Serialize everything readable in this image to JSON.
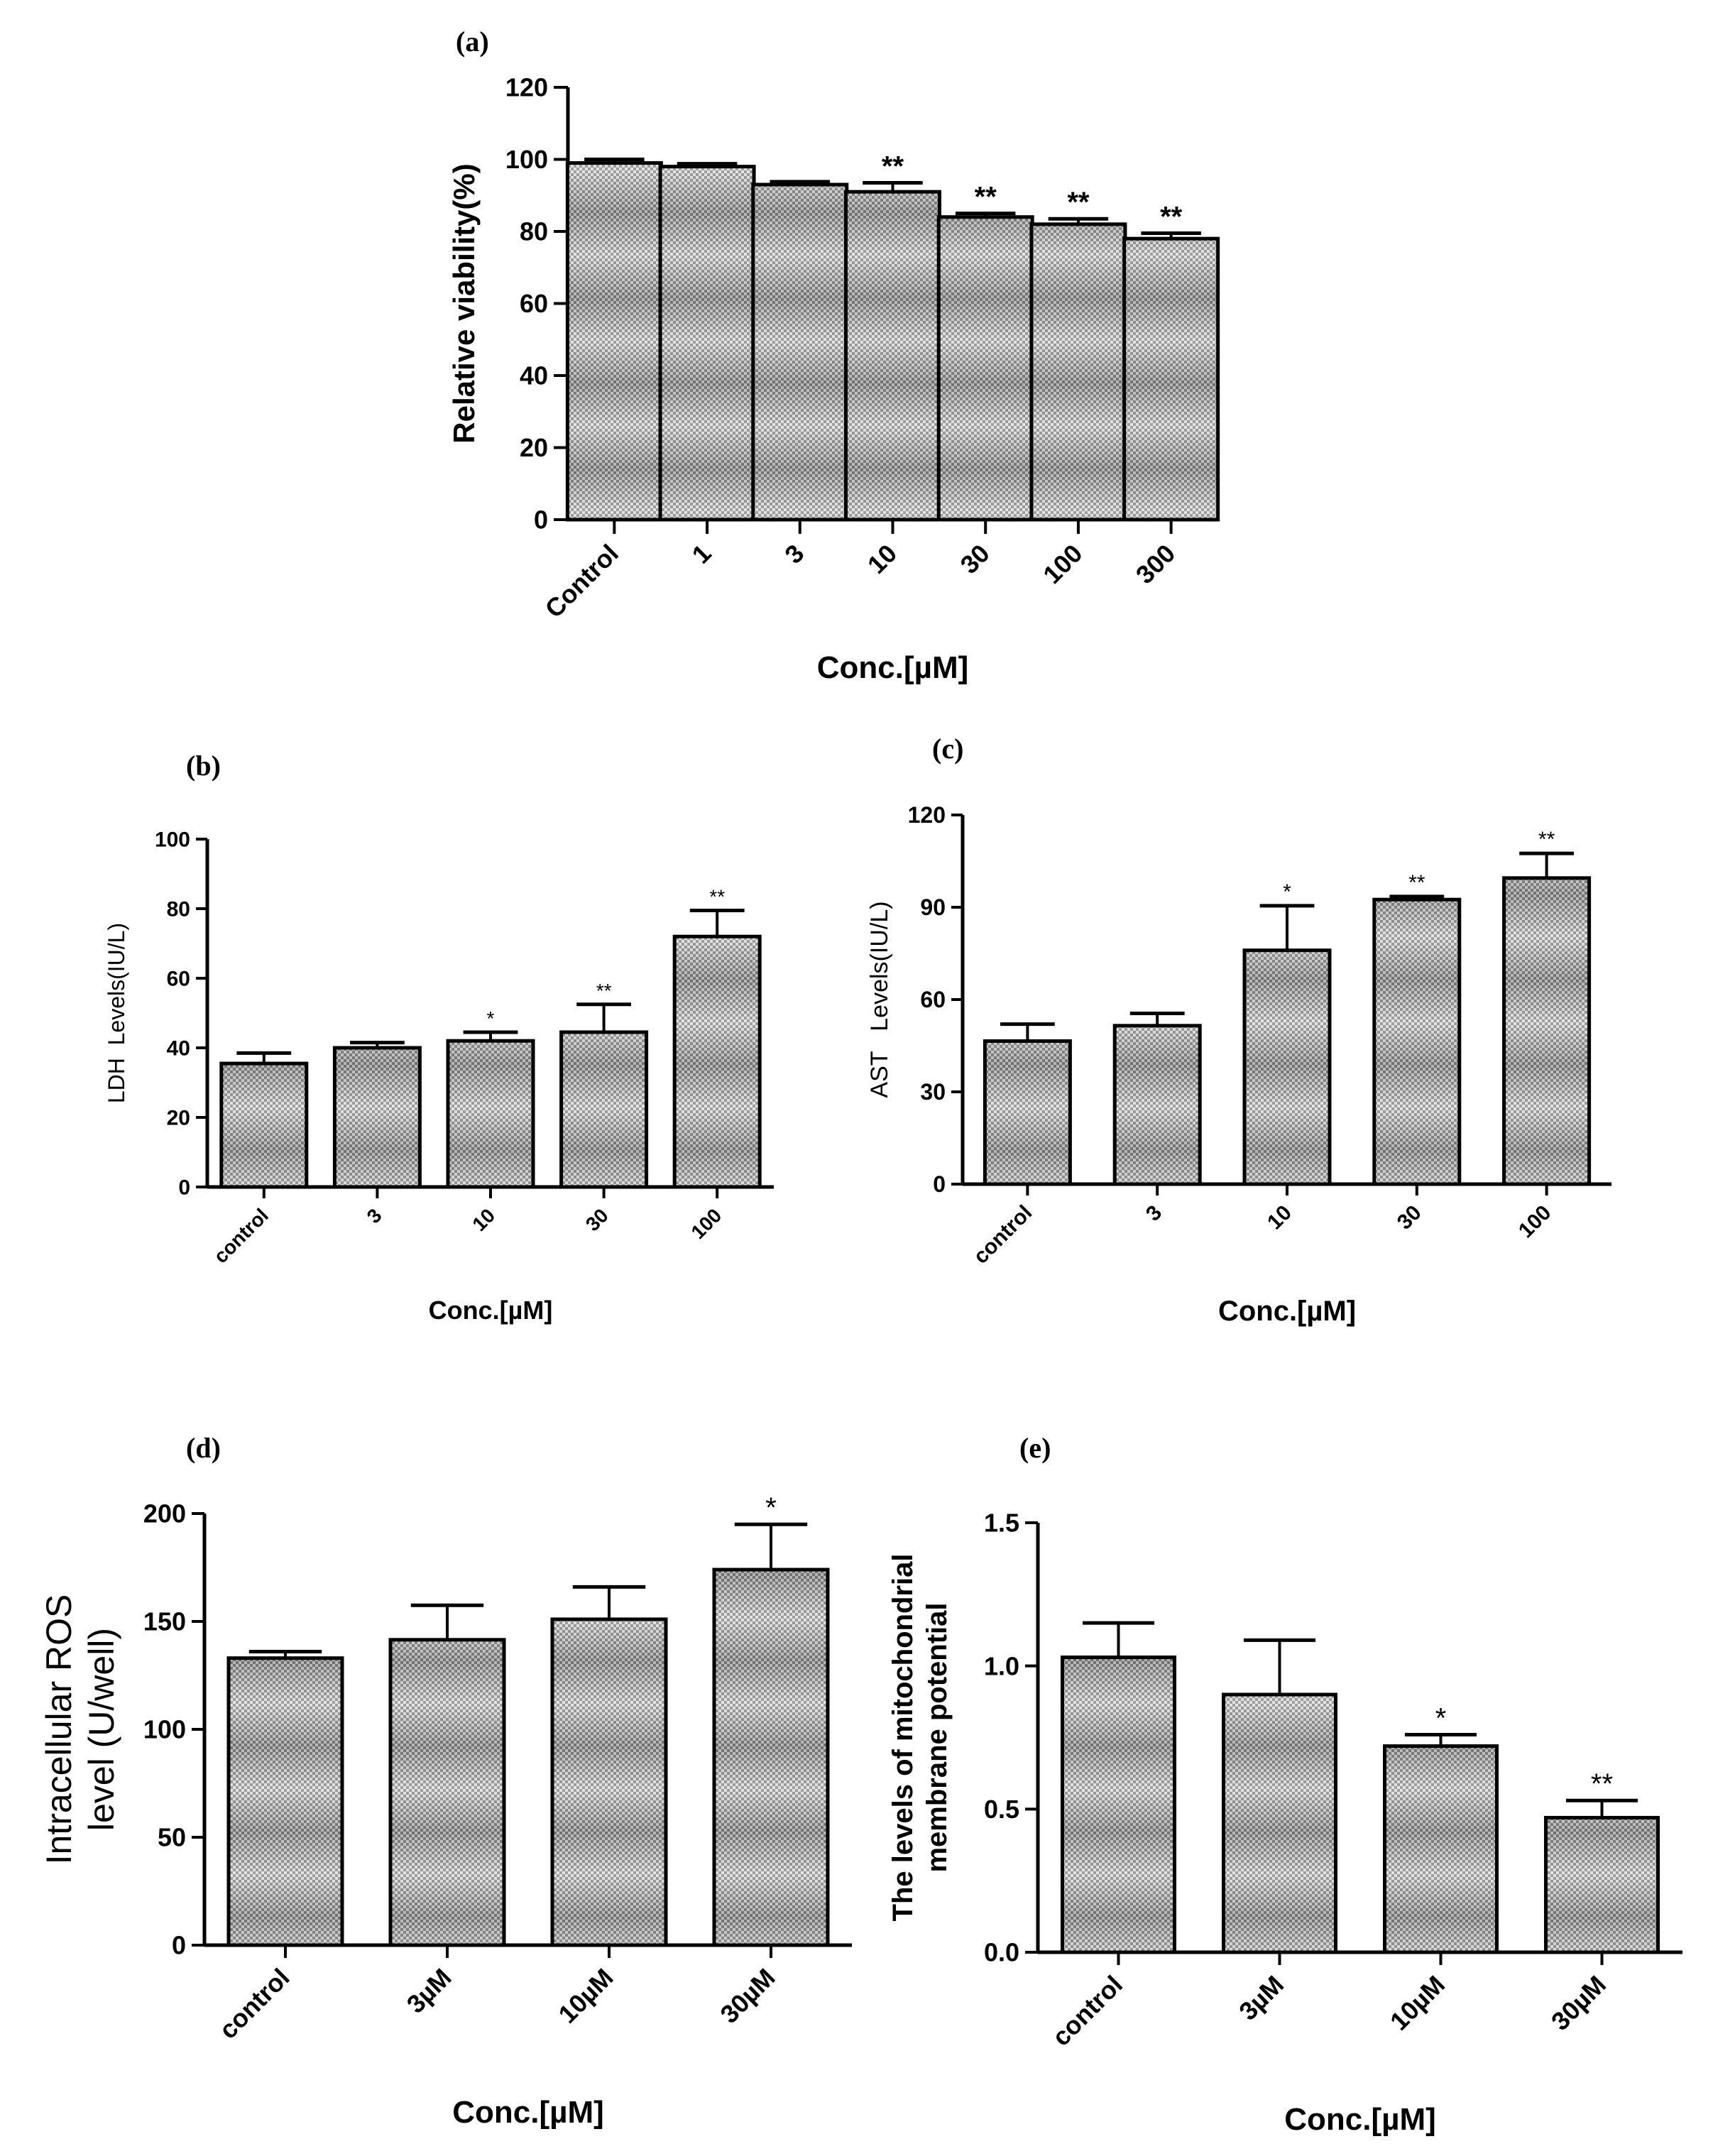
{
  "figure": {
    "colors": {
      "bar_fill_light": "#d9d9d9",
      "bar_fill_dark": "#8f8f8f",
      "axis": "#000000",
      "background": "#ffffff"
    }
  },
  "chart_data": [
    {
      "id": "a",
      "panel_label": "(a)",
      "type": "bar",
      "title": "",
      "xlabel": "Conc.[µM]",
      "ylabel": "Relative viability(%)",
      "ylim": [
        0,
        120
      ],
      "yticks": [
        0,
        20,
        40,
        60,
        80,
        100,
        120
      ],
      "categories": [
        "Control",
        "1",
        "3",
        "10",
        "30",
        "100",
        "300"
      ],
      "values": [
        99,
        98,
        93,
        91,
        84,
        82,
        78
      ],
      "errors": [
        1,
        0.8,
        0.8,
        2.5,
        1,
        1.5,
        1.5
      ],
      "significance": [
        "",
        "",
        "",
        "**",
        "**",
        "**",
        "**"
      ],
      "grid": false
    },
    {
      "id": "b",
      "panel_label": "(b)",
      "type": "bar",
      "title": "",
      "xlabel": "Conc.[µM]",
      "ylabel": "LDH  Levels(IU/L)",
      "ylim": [
        0,
        100
      ],
      "yticks": [
        0,
        20,
        40,
        60,
        80,
        100
      ],
      "categories": [
        "control",
        "3",
        "10",
        "30",
        "100"
      ],
      "values": [
        35.5,
        40,
        42,
        44.5,
        72
      ],
      "errors": [
        3,
        1.5,
        2.5,
        8,
        7.5
      ],
      "significance": [
        "",
        "",
        "*",
        "**",
        "**"
      ],
      "grid": false
    },
    {
      "id": "c",
      "panel_label": "(c)",
      "type": "bar",
      "title": "",
      "xlabel": "Conc.[µM]",
      "ylabel": "AST   Levels(IU/L)",
      "ylim": [
        0,
        120
      ],
      "yticks": [
        0,
        30,
        60,
        90,
        120
      ],
      "categories": [
        "control",
        "3",
        "10",
        "30",
        "100"
      ],
      "values": [
        46.5,
        51.5,
        76,
        92.5,
        99.5
      ],
      "errors": [
        5.5,
        4,
        14.5,
        1,
        8
      ],
      "significance": [
        "",
        "",
        "*",
        "**",
        "**"
      ],
      "grid": false
    },
    {
      "id": "d",
      "panel_label": "(d)",
      "type": "bar",
      "title": "",
      "xlabel": "Conc.[µM]",
      "ylabel": [
        "Intracellular ROS",
        "level (U/well)"
      ],
      "ylim": [
        0,
        200
      ],
      "yticks": [
        0,
        50,
        100,
        150,
        200
      ],
      "categories": [
        "control",
        "3µM",
        "10µM",
        "30µM"
      ],
      "values": [
        133,
        141.5,
        151,
        174
      ],
      "errors": [
        3,
        16,
        15,
        21
      ],
      "significance": [
        "",
        "",
        "",
        "*"
      ],
      "grid": false
    },
    {
      "id": "e",
      "panel_label": "(e)",
      "type": "bar",
      "title": "",
      "xlabel": "Conc.[µM]",
      "ylabel": [
        "The levels of mitochondrial",
        "membrane potential"
      ],
      "ylim": [
        0,
        1.5
      ],
      "yticks": [
        "0.0",
        "0.5",
        "1.0",
        "1.5"
      ],
      "categories": [
        "control",
        "3µM",
        "10µM",
        "30µM"
      ],
      "values": [
        1.03,
        0.9,
        0.72,
        0.47
      ],
      "errors": [
        0.12,
        0.19,
        0.04,
        0.06
      ],
      "significance": [
        "",
        "",
        "*",
        "**"
      ],
      "grid": false
    }
  ]
}
